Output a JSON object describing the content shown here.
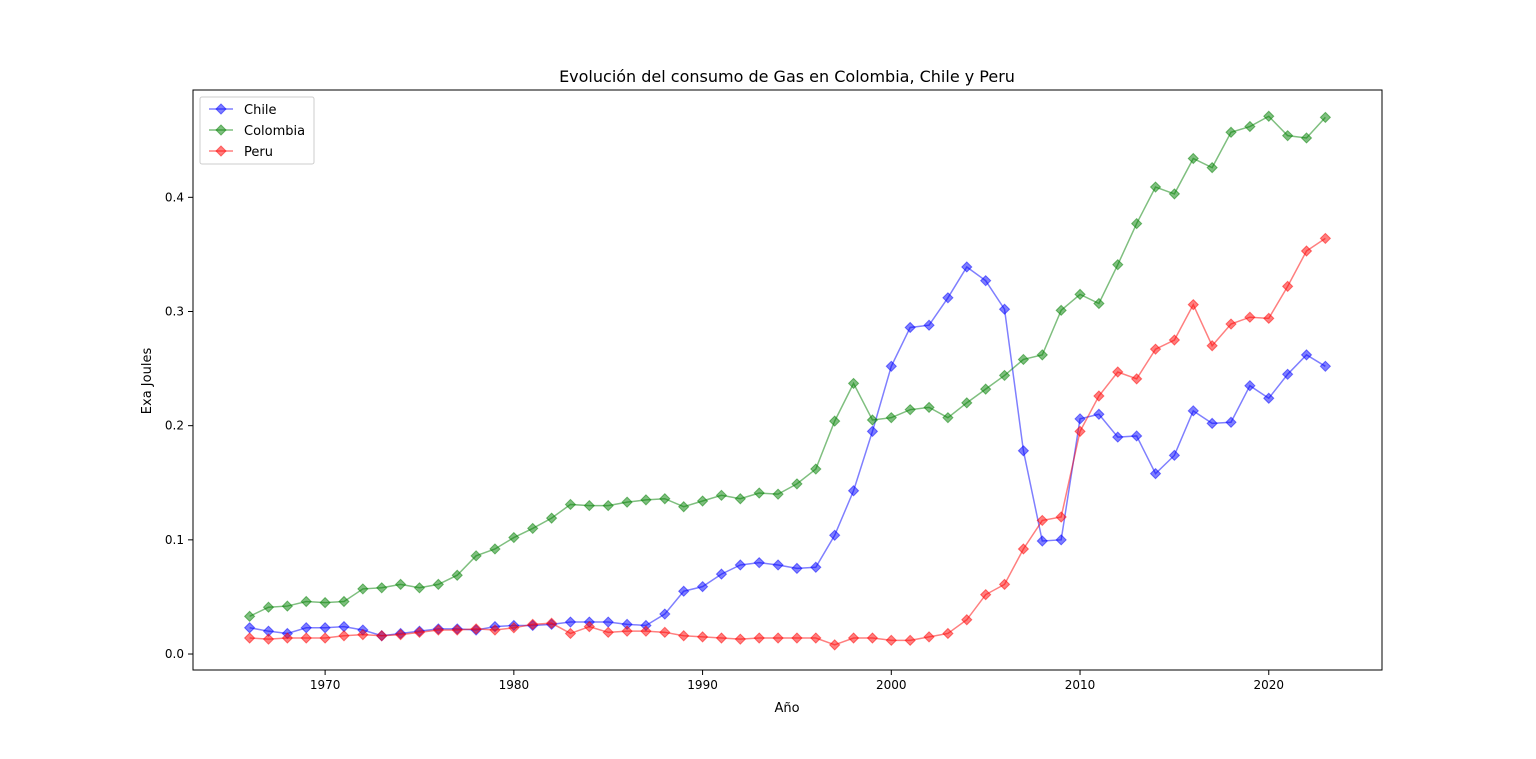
{
  "chart_data": {
    "type": "line",
    "title": "Evolución del consumo de Gas en Colombia, Chile y Peru",
    "xlabel": "Año",
    "ylabel": "Exa Joules",
    "xlim": [
      1963,
      2026
    ],
    "ylim": [
      -0.014,
      0.494
    ],
    "xticks": [
      1970,
      1980,
      1990,
      2000,
      2010,
      2020
    ],
    "yticks": [
      0.0,
      0.1,
      0.2,
      0.3,
      0.4
    ],
    "grid": false,
    "legend_position": "upper-left",
    "marker": "diamond",
    "x": [
      1966,
      1967,
      1968,
      1969,
      1970,
      1971,
      1972,
      1973,
      1974,
      1975,
      1976,
      1977,
      1978,
      1979,
      1980,
      1981,
      1982,
      1983,
      1984,
      1985,
      1986,
      1987,
      1988,
      1989,
      1990,
      1991,
      1992,
      1993,
      1994,
      1995,
      1996,
      1997,
      1998,
      1999,
      2000,
      2001,
      2002,
      2003,
      2004,
      2005,
      2006,
      2007,
      2008,
      2009,
      2010,
      2011,
      2012,
      2013,
      2014,
      2015,
      2016,
      2017,
      2018,
      2019,
      2020,
      2021,
      2022,
      2023
    ],
    "series": [
      {
        "name": "Chile",
        "color": "#0000ff",
        "values": [
          0.023,
          0.02,
          0.018,
          0.023,
          0.023,
          0.024,
          0.021,
          0.016,
          0.018,
          0.02,
          0.022,
          0.022,
          0.021,
          0.024,
          0.025,
          0.025,
          0.026,
          0.028,
          0.028,
          0.028,
          0.026,
          0.025,
          0.035,
          0.055,
          0.059,
          0.07,
          0.078,
          0.08,
          0.078,
          0.075,
          0.076,
          0.104,
          0.143,
          0.195,
          0.252,
          0.286,
          0.288,
          0.312,
          0.339,
          0.327,
          0.302,
          0.178,
          0.099,
          0.1,
          0.206,
          0.21,
          0.19,
          0.191,
          0.158,
          0.174,
          0.213,
          0.202,
          0.203,
          0.235,
          0.224,
          0.245,
          0.262,
          0.252
        ]
      },
      {
        "name": "Colombia",
        "color": "#008000",
        "values": [
          0.033,
          0.041,
          0.042,
          0.046,
          0.045,
          0.046,
          0.057,
          0.058,
          0.061,
          0.058,
          0.061,
          0.069,
          0.086,
          0.092,
          0.102,
          0.11,
          0.119,
          0.131,
          0.13,
          0.13,
          0.133,
          0.135,
          0.136,
          0.129,
          0.134,
          0.139,
          0.136,
          0.141,
          0.14,
          0.149,
          0.162,
          0.204,
          0.237,
          0.205,
          0.207,
          0.214,
          0.216,
          0.207,
          0.22,
          0.232,
          0.244,
          0.258,
          0.262,
          0.301,
          0.315,
          0.307,
          0.341,
          0.377,
          0.409,
          0.403,
          0.434,
          0.426,
          0.457,
          0.462,
          0.471,
          0.454,
          0.452,
          0.47
        ]
      },
      {
        "name": "Peru",
        "color": "#ff0000",
        "values": [
          0.014,
          0.013,
          0.014,
          0.014,
          0.014,
          0.016,
          0.017,
          0.016,
          0.017,
          0.019,
          0.021,
          0.021,
          0.022,
          0.021,
          0.023,
          0.026,
          0.027,
          0.018,
          0.024,
          0.019,
          0.02,
          0.02,
          0.019,
          0.016,
          0.015,
          0.014,
          0.013,
          0.014,
          0.014,
          0.014,
          0.014,
          0.008,
          0.014,
          0.014,
          0.012,
          0.012,
          0.015,
          0.018,
          0.03,
          0.052,
          0.061,
          0.092,
          0.117,
          0.12,
          0.195,
          0.226,
          0.247,
          0.241,
          0.267,
          0.275,
          0.306,
          0.27,
          0.289,
          0.295,
          0.294,
          0.322,
          0.353,
          0.364
        ]
      }
    ]
  }
}
